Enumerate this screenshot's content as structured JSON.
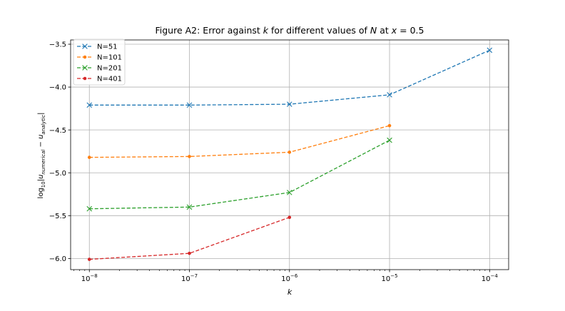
{
  "chart_data": {
    "type": "line",
    "title_parts": [
      "Figure A2: Error against ",
      "k",
      " for different values of ",
      "N",
      " at ",
      "x",
      " = 0.5"
    ],
    "xlabel": "k",
    "ylabel_parts": [
      "log",
      "10",
      "|u",
      "numerical",
      " − u",
      "analytic",
      "|"
    ],
    "x_scale": "log",
    "xlim": [
      6.5e-09,
      0.000155
    ],
    "ylim": [
      -6.13,
      -3.45
    ],
    "x_ticks": [
      {
        "value": 1e-08,
        "base": "10",
        "exp": "−8"
      },
      {
        "value": 1e-07,
        "base": "10",
        "exp": "−7"
      },
      {
        "value": 1e-06,
        "base": "10",
        "exp": "−6"
      },
      {
        "value": 1e-05,
        "base": "10",
        "exp": "−5"
      },
      {
        "value": 0.0001,
        "base": "10",
        "exp": "−4"
      }
    ],
    "y_ticks": [
      {
        "value": -3.5,
        "label": "−3.5"
      },
      {
        "value": -4.0,
        "label": "−4.0"
      },
      {
        "value": -4.5,
        "label": "−4.5"
      },
      {
        "value": -5.0,
        "label": "−5.0"
      },
      {
        "value": -5.5,
        "label": "−5.5"
      },
      {
        "value": -6.0,
        "label": "−6.0"
      }
    ],
    "grid": true,
    "legend_position": "top-left",
    "series": [
      {
        "name": "N=51",
        "color": "#1f77b4",
        "marker": "x",
        "x": [
          1e-08,
          1e-07,
          1e-06,
          1e-05,
          0.0001
        ],
        "y": [
          -4.21,
          -4.21,
          -4.2,
          -4.09,
          -3.57
        ]
      },
      {
        "name": "N=101",
        "color": "#ff7f0e",
        "marker": "dot",
        "x": [
          1e-08,
          1e-07,
          1e-06,
          1e-05
        ],
        "y": [
          -4.82,
          -4.81,
          -4.76,
          -4.45
        ]
      },
      {
        "name": "N=201",
        "color": "#2ca02c",
        "marker": "x",
        "x": [
          1e-08,
          1e-07,
          1e-06,
          1e-05
        ],
        "y": [
          -5.42,
          -5.4,
          -5.23,
          -4.62
        ]
      },
      {
        "name": "N=401",
        "color": "#d62728",
        "marker": "dot",
        "x": [
          1e-08,
          1e-07,
          1e-06
        ],
        "y": [
          -6.01,
          -5.94,
          -5.52
        ]
      }
    ]
  }
}
